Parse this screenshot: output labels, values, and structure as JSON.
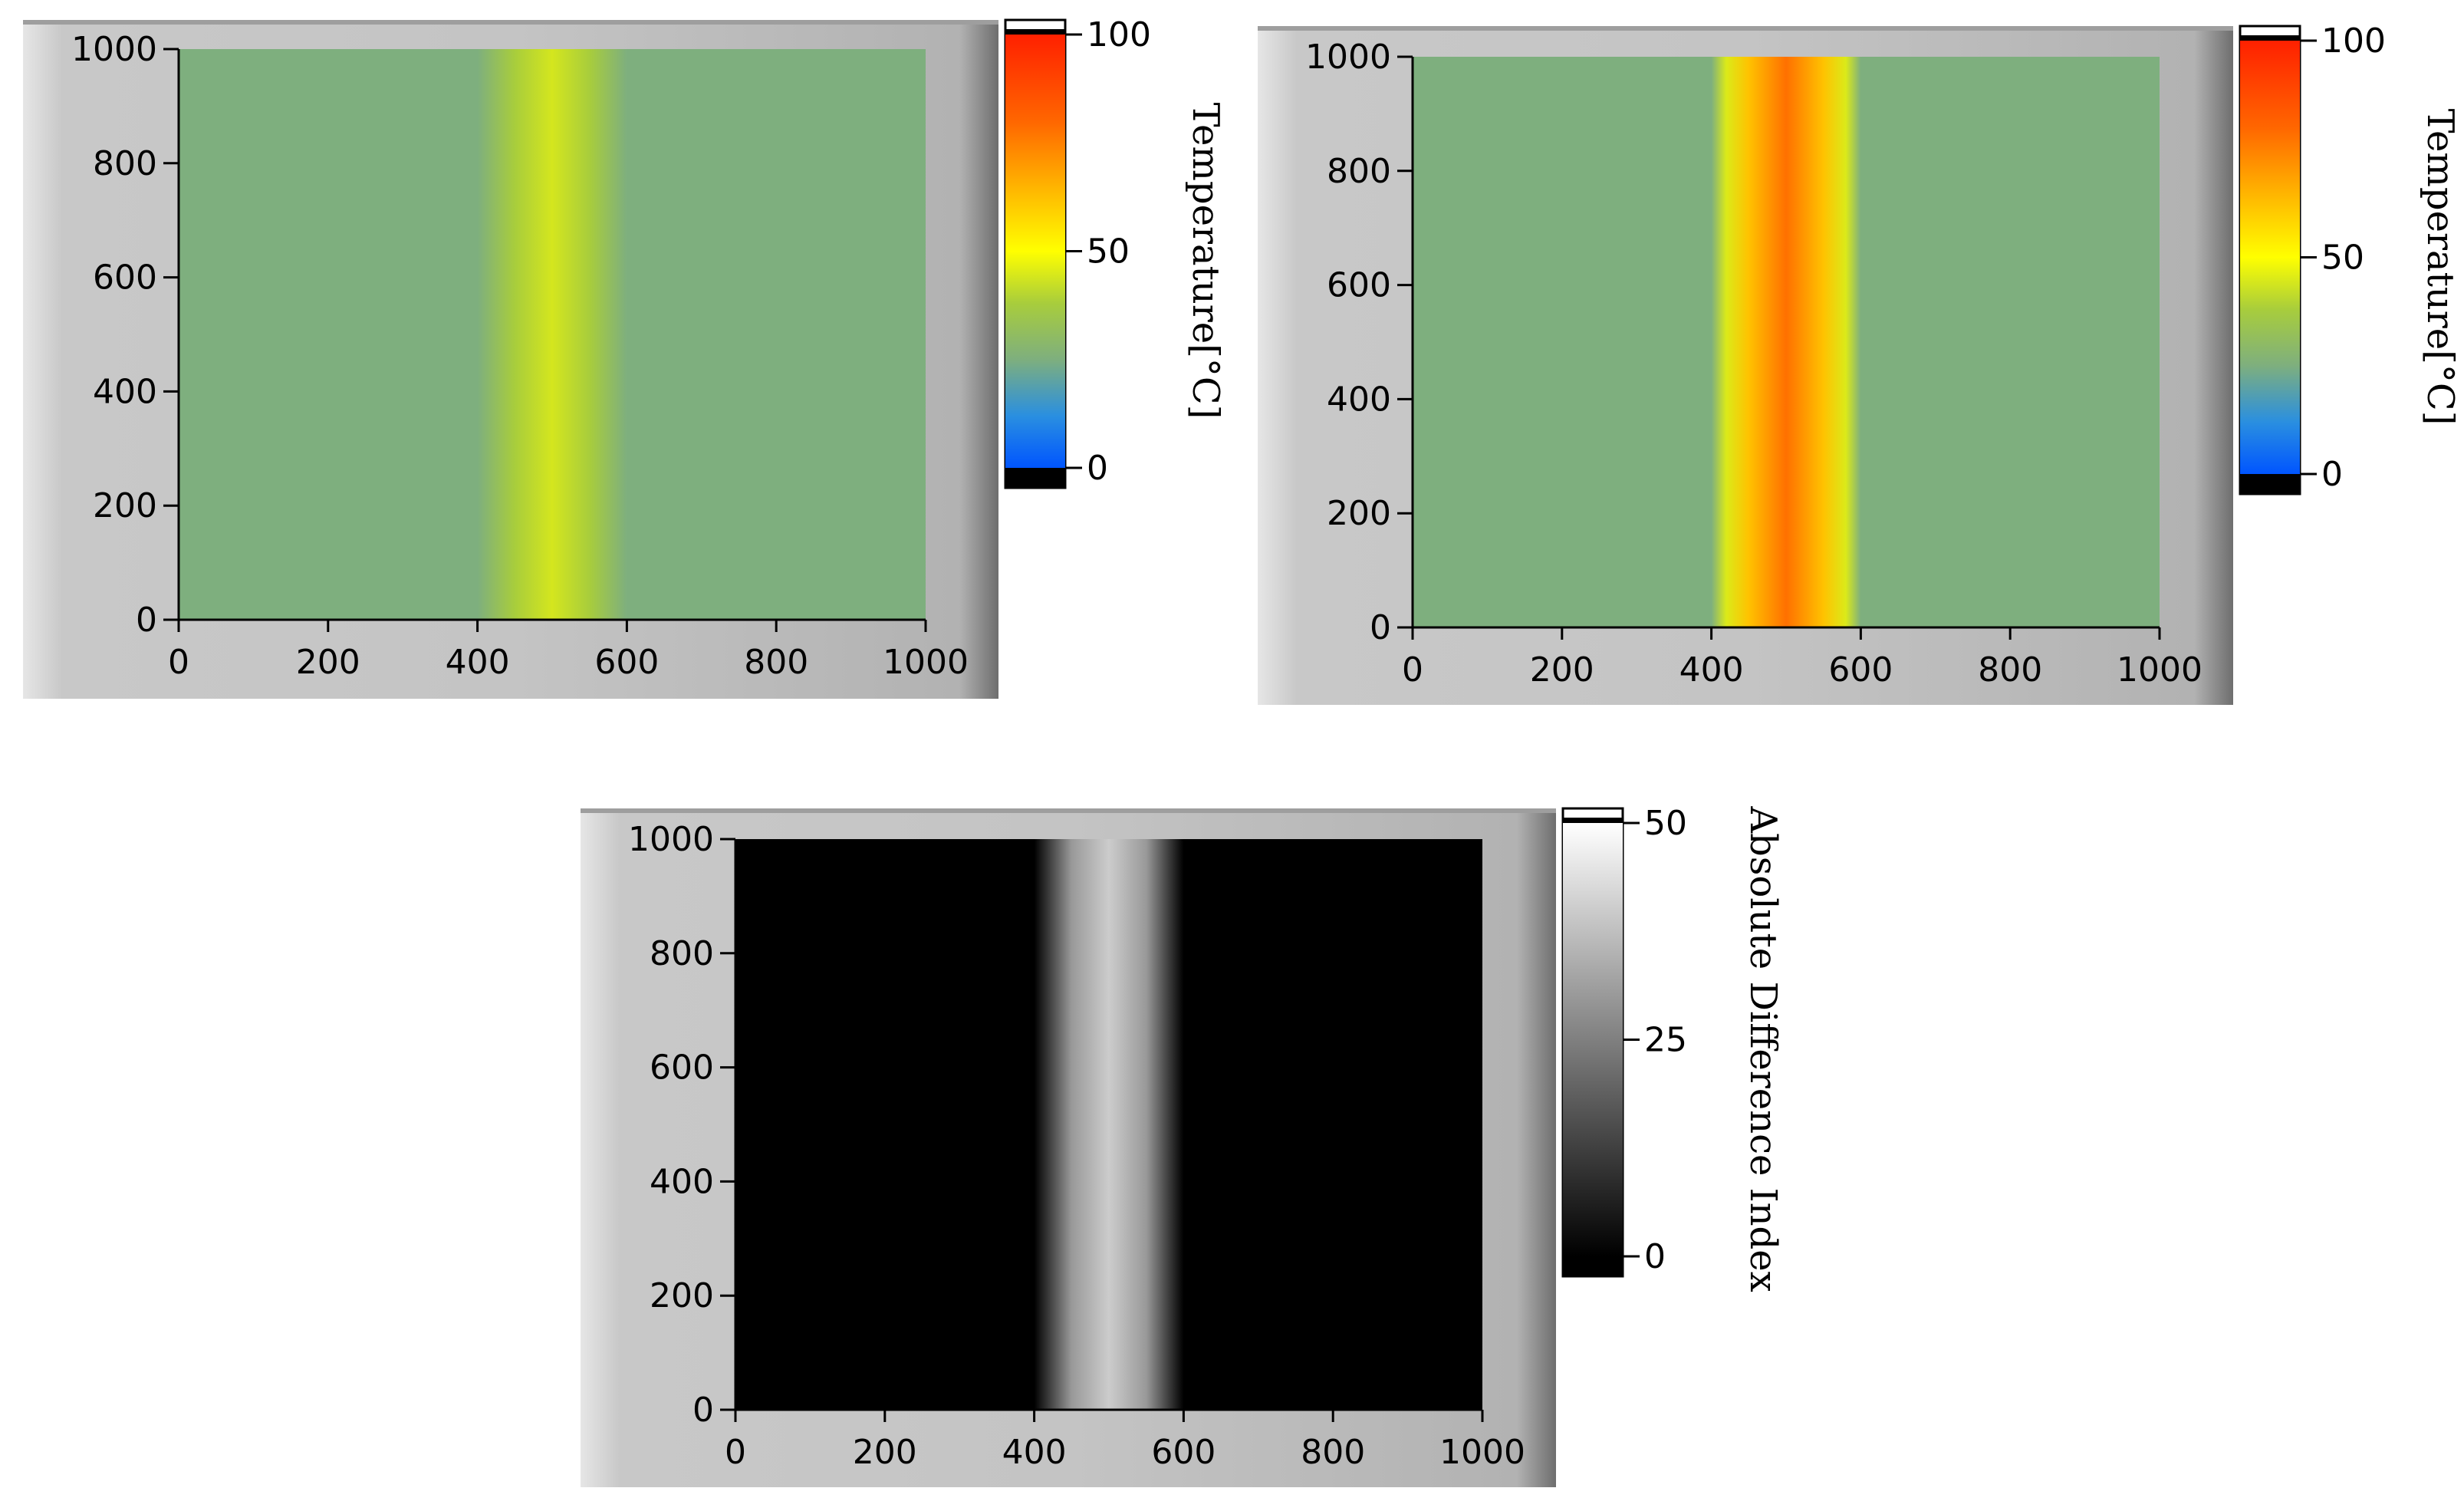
{
  "chart_data": [
    {
      "type": "heatmap",
      "title": "",
      "xlabel": "",
      "ylabel": "",
      "xlim": [
        0,
        1000
      ],
      "ylim": [
        0,
        1000
      ],
      "xticks": [
        "0",
        "200",
        "400",
        "600",
        "800",
        "1000"
      ],
      "yticks": [
        "0",
        "200",
        "400",
        "600",
        "800",
        "1000"
      ],
      "x_profile": {
        "x": [
          0,
          400,
          450,
          500,
          550,
          600,
          1000
        ],
        "value": [
          25,
          25,
          38,
          44,
          38,
          25,
          25
        ]
      },
      "colorbar": {
        "label": "Temperature[°C]",
        "min": 0,
        "max": 100,
        "ticks": [
          "0",
          "50",
          "100"
        ],
        "colormap": "temperature"
      }
    },
    {
      "type": "heatmap",
      "title": "",
      "xlabel": "",
      "ylabel": "",
      "xlim": [
        0,
        1000
      ],
      "ylim": [
        0,
        1000
      ],
      "xticks": [
        "0",
        "200",
        "400",
        "600",
        "800",
        "1000"
      ],
      "yticks": [
        "0",
        "200",
        "400",
        "600",
        "800",
        "1000"
      ],
      "x_profile": {
        "x": [
          0,
          400,
          420,
          450,
          500,
          550,
          580,
          600,
          1000
        ],
        "value": [
          25,
          25,
          45,
          62,
          78,
          62,
          45,
          25,
          25
        ]
      },
      "colorbar": {
        "label": "Temperature[°C]",
        "min": 0,
        "max": 100,
        "ticks": [
          "0",
          "50",
          "100"
        ],
        "colormap": "temperature"
      }
    },
    {
      "type": "heatmap",
      "title": "",
      "xlabel": "",
      "ylabel": "",
      "xlim": [
        0,
        1000
      ],
      "ylim": [
        0,
        1000
      ],
      "xticks": [
        "0",
        "200",
        "400",
        "600",
        "800",
        "1000"
      ],
      "yticks": [
        "0",
        "200",
        "400",
        "600",
        "800",
        "1000"
      ],
      "x_profile": {
        "x": [
          0,
          400,
          450,
          500,
          550,
          600,
          1000
        ],
        "value": [
          0,
          0,
          30,
          40,
          30,
          0,
          0
        ]
      },
      "colorbar": {
        "label": "Absolute Difference Index",
        "min": 0,
        "max": 50,
        "ticks": [
          "0",
          "25",
          "50"
        ],
        "colormap": "grayscale"
      }
    }
  ],
  "colormaps": {
    "temperature": [
      {
        "v": 0.0,
        "c": "#0055ff"
      },
      {
        "v": 0.12,
        "c": "#2a8fe0"
      },
      {
        "v": 0.25,
        "c": "#7eaf7e"
      },
      {
        "v": 0.38,
        "c": "#a8cd3c"
      },
      {
        "v": 0.5,
        "c": "#ffff00"
      },
      {
        "v": 0.65,
        "c": "#ffb300"
      },
      {
        "v": 0.8,
        "c": "#ff6600"
      },
      {
        "v": 1.0,
        "c": "#ff2000"
      }
    ],
    "grayscale": [
      {
        "v": 0.0,
        "c": "#000000"
      },
      {
        "v": 1.0,
        "c": "#ffffff"
      }
    ]
  }
}
